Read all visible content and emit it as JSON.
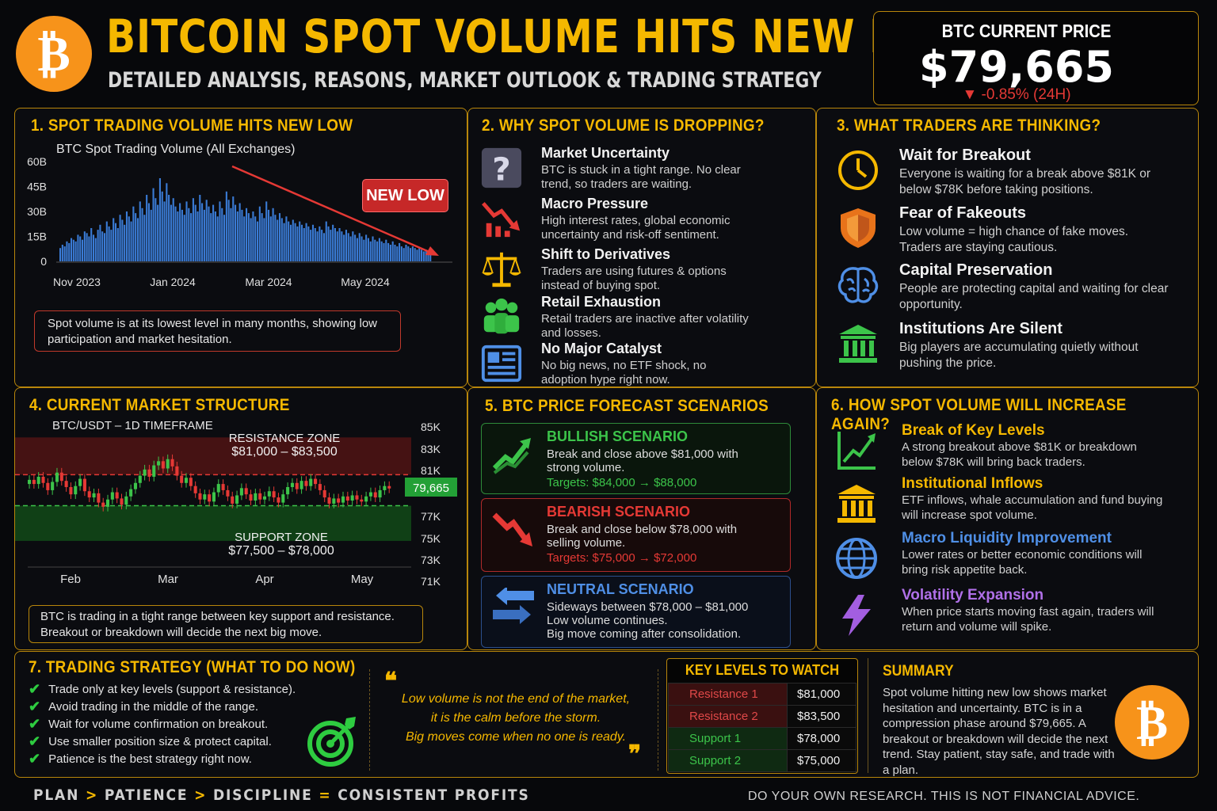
{
  "header": {
    "title": "BITCOIN SPOT VOLUME HITS NEW LOW",
    "subtitle": "DETAILED ANALYSIS, REASONS, MARKET OUTLOOK & TRADING STRATEGY",
    "price_label": "BTC CURRENT PRICE",
    "price": "$79,665",
    "change": "-0.85% (24H)"
  },
  "s1": {
    "title": "1. SPOT TRADING VOLUME HITS NEW LOW",
    "chart_title": "BTC Spot Trading Volume (All Exchanges)",
    "badge": "NEW LOW",
    "note": "Spot volume is at its lowest level in many months, showing low participation and market hesitation."
  },
  "s2": {
    "title": "2. WHY SPOT VOLUME IS DROPPING?",
    "items": [
      {
        "title": "Market Uncertainty",
        "desc": "BTC is stuck in a tight range. No clear trend, so traders are waiting.",
        "icon": "question-icon"
      },
      {
        "title": "Macro Pressure",
        "desc": "High interest rates, global economic uncertainty and risk-off sentiment.",
        "icon": "chart-down-icon"
      },
      {
        "title": "Shift to Derivatives",
        "desc": "Traders are using futures & options instead of buying spot.",
        "icon": "scales-icon"
      },
      {
        "title": "Retail Exhaustion",
        "desc": "Retail traders are inactive after volatility and losses.",
        "icon": "people-icon"
      },
      {
        "title": "No Major Catalyst",
        "desc": "No big news, no ETF shock, no adoption hype right now.",
        "icon": "news-icon"
      }
    ]
  },
  "s3": {
    "title": "3. WHAT TRADERS ARE THINKING?",
    "items": [
      {
        "title": "Wait for Breakout",
        "desc": "Everyone is waiting for a break above $81K or below $78K before taking positions.",
        "icon": "clock-icon"
      },
      {
        "title": "Fear of Fakeouts",
        "desc": "Low volume = high chance of fake moves. Traders are staying cautious.",
        "icon": "shield-icon"
      },
      {
        "title": "Capital Preservation",
        "desc": "People are protecting capital and waiting for clear opportunity.",
        "icon": "brain-icon"
      },
      {
        "title": "Institutions Are Silent",
        "desc": "Big players are accumulating quietly without pushing the price.",
        "icon": "bank-icon"
      }
    ]
  },
  "s4": {
    "title": "4. CURRENT MARKET STRUCTURE",
    "pair": "BTC/USDT – 1D TIMEFRAME",
    "resistance_label": "RESISTANCE ZONE",
    "resistance_range": "$81,000 – $83,500",
    "support_label": "SUPPORT ZONE",
    "support_range": "$77,500 – $78,000",
    "price_tag": "79,665",
    "note": "BTC is trading in a tight range between key support and resistance. Breakout or breakdown will decide the next big move."
  },
  "s5": {
    "title": "5. BTC PRICE FORECAST SCENARIOS",
    "bull": {
      "title": "BULLISH SCENARIO",
      "desc": "Break and close above $81,000 with strong volume.",
      "targets": "Targets: $84,000 → $88,000"
    },
    "bear": {
      "title": "BEARISH SCENARIO",
      "desc": "Break and close below $78,000 with selling volume.",
      "targets": "Targets: $75,000 → $72,000"
    },
    "neutral": {
      "title": "NEUTRAL SCENARIO",
      "desc1": "Sideways between $78,000 – $81,000",
      "desc2": "Low volume continues.",
      "desc3": "Big move coming after consolidation."
    }
  },
  "s6": {
    "title": "6. HOW SPOT VOLUME WILL INCREASE AGAIN?",
    "items": [
      {
        "title": "Break of Key Levels",
        "desc": "A strong breakout above $81K or breakdown below $78K will bring back traders.",
        "color": "#f5b800",
        "icon": "line-up-icon"
      },
      {
        "title": "Institutional Inflows",
        "desc": "ETF inflows, whale accumulation and fund buying will increase spot volume.",
        "color": "#f5b800",
        "icon": "bank-icon"
      },
      {
        "title": "Macro Liquidity Improvement",
        "desc": "Lower rates or better economic conditions will bring risk appetite back.",
        "color": "#4f8fe6",
        "icon": "globe-icon"
      },
      {
        "title": "Volatility Expansion",
        "desc": "When price starts moving fast again, traders will return and volume will spike.",
        "color": "#b070e8",
        "icon": "lightning-icon"
      }
    ]
  },
  "s7": {
    "title": "7. TRADING STRATEGY (WHAT TO DO NOW)",
    "checks": [
      "Trade only at key levels (support & resistance).",
      "Avoid trading in the middle of the range.",
      "Wait for volume confirmation on breakout.",
      "Use smaller position size & protect capital.",
      "Patience is the best strategy right now."
    ],
    "quote": [
      "Low volume is not the end of the market,",
      "it is the calm before the storm.",
      "Big moves come when no one is ready."
    ]
  },
  "levels": {
    "title": "KEY LEVELS TO WATCH",
    "rows": [
      {
        "name": "Resistance 1",
        "value": "$81,000",
        "color": "#e04848",
        "bg": "#3a1010"
      },
      {
        "name": "Resistance 2",
        "value": "$83,500",
        "color": "#e04848",
        "bg": "#3a1010"
      },
      {
        "name": "Support 1",
        "value": "$78,000",
        "color": "#3cc44a",
        "bg": "#0f2a12"
      },
      {
        "name": "Support 2",
        "value": "$75,000",
        "color": "#3cc44a",
        "bg": "#0f2a12"
      }
    ]
  },
  "summary": {
    "title": "SUMMARY",
    "text": "Spot volume hitting new low shows market hesitation and uncertainty. BTC is in a compression phase around $79,665. A breakout or breakdown will decide the next trend. Stay patient, stay safe, and trade with a plan."
  },
  "footer": {
    "plan": "PLAN",
    "patience": "PATIENCE",
    "discipline": "DISCIPLINE",
    "profits": "CONSISTENT PROFITS",
    "sep1": ">",
    "sep2": ">",
    "eq": "=",
    "disclaimer": "DO YOUR OWN RESEARCH. THIS IS NOT FINANCIAL ADVICE."
  },
  "chart_data": [
    {
      "type": "bar",
      "title": "BTC Spot Trading Volume (All Exchanges)",
      "x_ticks": [
        "Nov 2023",
        "Jan 2024",
        "Mar 2024",
        "May 2024"
      ],
      "y_ticks": [
        "60B",
        "45B",
        "30B",
        "15B",
        "0"
      ],
      "ylim": [
        0,
        60
      ],
      "values": [
        8,
        10,
        9,
        12,
        11,
        14,
        13,
        12,
        16,
        15,
        13,
        18,
        17,
        15,
        20,
        16,
        14,
        19,
        22,
        18,
        17,
        24,
        21,
        19,
        26,
        23,
        20,
        28,
        25,
        22,
        30,
        27,
        24,
        33,
        29,
        26,
        36,
        32,
        28,
        40,
        35,
        31,
        44,
        38,
        34,
        50,
        42,
        36,
        47,
        40,
        34,
        38,
        33,
        30,
        35,
        31,
        28,
        36,
        32,
        29,
        38,
        34,
        30,
        40,
        35,
        31,
        37,
        33,
        29,
        34,
        30,
        27,
        36,
        32,
        28,
        42,
        37,
        32,
        39,
        34,
        30,
        35,
        31,
        27,
        32,
        29,
        26,
        30,
        27,
        24,
        33,
        29,
        26,
        36,
        31,
        27,
        32,
        28,
        25,
        29,
        26,
        23,
        27,
        24,
        22,
        25,
        23,
        21,
        24,
        22,
        20,
        23,
        21,
        19,
        22,
        20,
        18,
        21,
        19,
        17,
        24,
        21,
        19,
        22,
        20,
        18,
        20,
        18,
        16,
        19,
        17,
        15,
        18,
        16,
        14,
        17,
        15,
        13,
        16,
        14,
        12,
        15,
        13,
        12,
        14,
        12,
        11,
        13,
        11,
        10,
        12,
        10,
        9,
        11,
        9,
        8,
        10,
        9,
        8,
        9,
        8,
        7,
        8,
        7,
        6,
        7,
        6,
        5
      ],
      "annotation": "NEW LOW"
    },
    {
      "type": "candlestick",
      "title": "BTC/USDT – 1D TIMEFRAME",
      "x_ticks": [
        "Feb",
        "Mar",
        "Apr",
        "May"
      ],
      "y_ticks": [
        "85K",
        "83K",
        "81K",
        "79,665",
        "77K",
        "75K",
        "73K",
        "71K"
      ],
      "ylim": [
        71,
        86
      ],
      "closes": [
        80.5,
        80.1,
        80.8,
        80.2,
        79.5,
        80.3,
        81.2,
        80.4,
        79.8,
        79.1,
        79.9,
        80.6,
        79.4,
        78.8,
        79.2,
        78.3,
        77.9,
        78.6,
        79.3,
        78.7,
        78.1,
        78.9,
        79.6,
        80.2,
        80.9,
        81.5,
        80.8,
        81.9,
        82.3,
        81.6,
        82.5,
        81.8,
        80.9,
        80.2,
        80.7,
        79.9,
        79.2,
        78.6,
        79.1,
        78.4,
        79.3,
        80.1,
        79.5,
        78.9,
        78.2,
        79.0,
        79.7,
        79.1,
        78.5,
        79.2,
        78.6,
        78.9,
        79.4,
        78.8,
        78.3,
        79.1,
        79.8,
        80.2,
        79.6,
        80.4,
        79.9,
        80.6,
        80.1,
        79.5,
        78.8,
        78.2,
        78.7,
        78.3,
        78.9,
        78.5,
        79.0,
        78.6,
        78.4,
        78.9,
        79.3,
        78.8,
        79.5,
        79.9,
        79.665
      ]
    }
  ]
}
